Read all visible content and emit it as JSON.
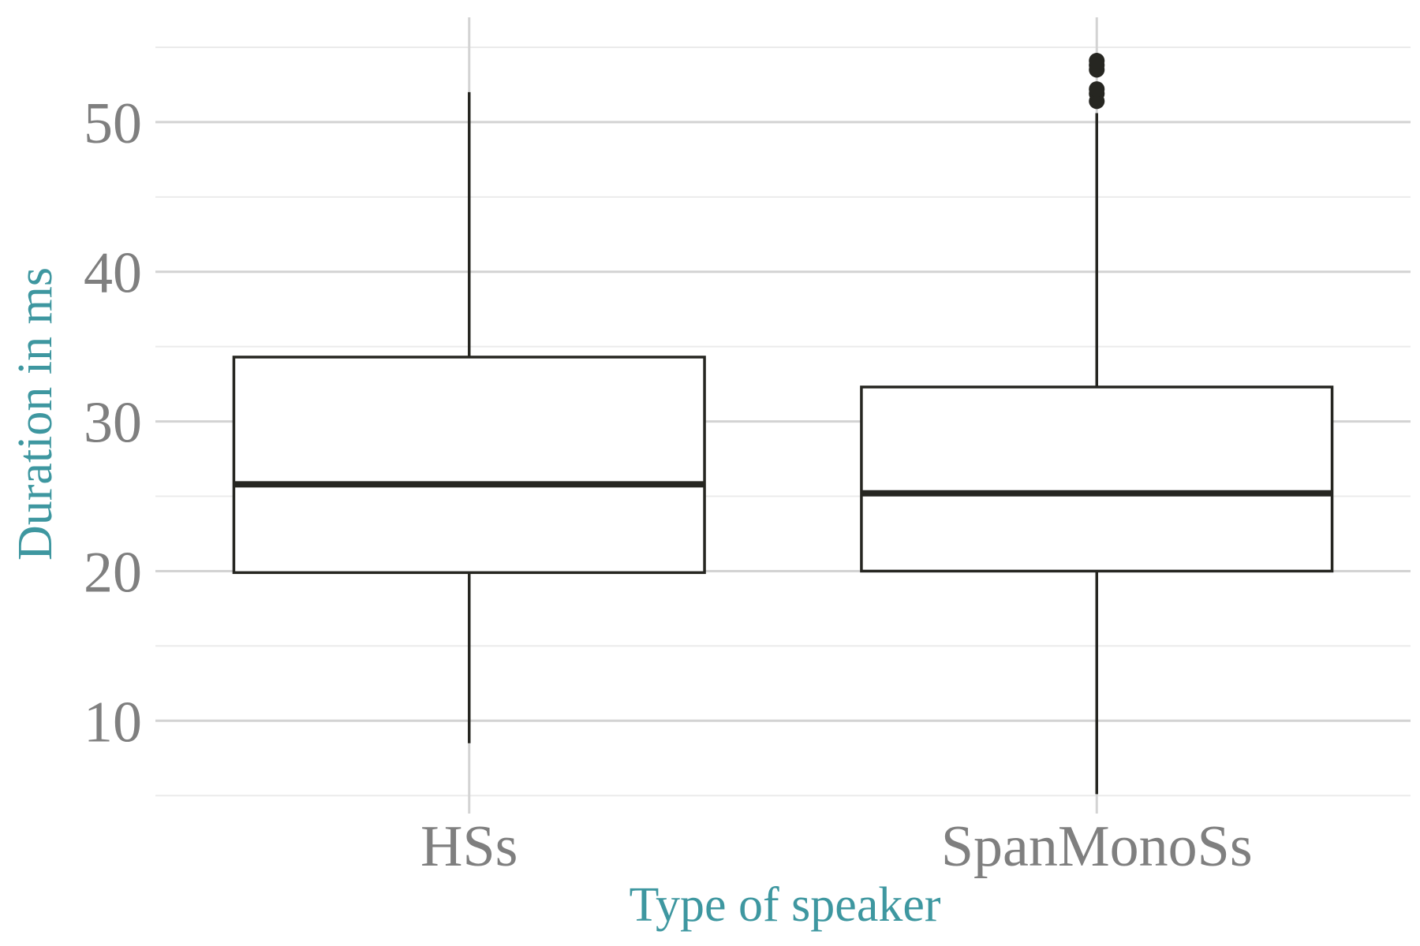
{
  "chart_data": {
    "type": "box",
    "xlabel": "Type of speaker",
    "ylabel": "Duration in ms",
    "ylim": [
      3.8,
      57.0
    ],
    "yticks": [
      10,
      20,
      30,
      40,
      50
    ],
    "grid": true,
    "categories": [
      "HSs",
      "SpanMonoSs"
    ],
    "boxes": [
      {
        "category": "HSs",
        "min": 8.5,
        "q1": 19.9,
        "median": 25.8,
        "q3": 34.3,
        "max": 52.0,
        "outliers": []
      },
      {
        "category": "SpanMonoSs",
        "min": 5.1,
        "q1": 20.0,
        "median": 25.2,
        "q3": 32.3,
        "max": 50.6,
        "outliers": [
          51.4,
          51.9,
          52.2,
          53.5,
          53.8,
          54.1
        ]
      }
    ],
    "colors": {
      "box_line": "#262621",
      "axis_title": "#3e97a0",
      "tick_label": "#7f7f7f"
    }
  }
}
